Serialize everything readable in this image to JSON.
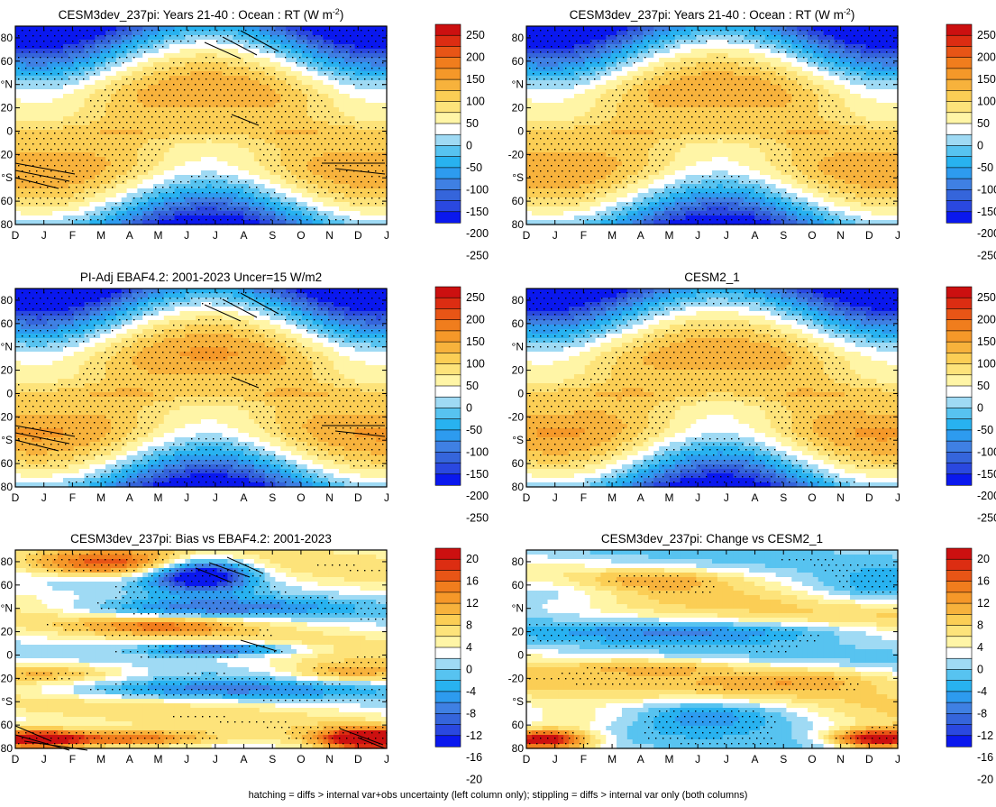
{
  "palette": {
    "rt": [
      "#0a18ee",
      "#2a48e0",
      "#3565db",
      "#3f80e3",
      "#2d9bef",
      "#28b2f0",
      "#57c3f0",
      "#9fdaf4",
      "#ffffff",
      "#fff5a6",
      "#fde37a",
      "#fbce55",
      "#f7b23c",
      "#f59829",
      "#f07d1d",
      "#e85516",
      "#dc2d12",
      "#cc1010"
    ],
    "diff": [
      "#0a18ee",
      "#2a48e0",
      "#3565db",
      "#3f80e3",
      "#2d9bef",
      "#28b2f0",
      "#57c3f0",
      "#9fdaf4",
      "#ffffff",
      "#fff5a6",
      "#fde37a",
      "#fbce55",
      "#f7b23c",
      "#f59829",
      "#f07d1d",
      "#e85516",
      "#dc2d12",
      "#cc1010"
    ]
  },
  "footnote": "hatching = diffs > internal var+obs uncertainty (left column only); stippling = diffs > internal var only (both columns)",
  "chart_data": [
    {
      "type": "heatmap",
      "panel_kind": "rt",
      "title_parts": [
        "CESM3dev_237pi: Years 21-40 : Ocean : RT (W m",
        "-2",
        ")"
      ],
      "x_ticklabels": [
        "D",
        "J",
        "F",
        "M",
        "A",
        "M",
        "J",
        "J",
        "A",
        "S",
        "O",
        "N",
        "D",
        "J"
      ],
      "y_ticks": [
        80,
        60,
        "°N",
        20,
        0,
        -20,
        "°S",
        -60,
        -80
      ],
      "y_ticklabels": [
        "80",
        "60",
        "°N",
        "20",
        "0",
        "-20",
        "°S",
        "60",
        "80"
      ],
      "ylim": [
        -80,
        90
      ],
      "colorbar_labels": [
        "250",
        "200",
        "150",
        "100",
        "50",
        "0",
        "-50",
        "-100",
        "-150",
        "-200",
        "-250"
      ],
      "stippling": "dense",
      "hatching": true,
      "field": "rt_model"
    },
    {
      "type": "heatmap",
      "panel_kind": "rt",
      "title_parts": [
        "CESM3dev_237pi: Years 21-40 : Ocean : RT (W m",
        "-2",
        ")"
      ],
      "x_ticklabels": [
        "D",
        "J",
        "F",
        "M",
        "A",
        "M",
        "J",
        "J",
        "A",
        "S",
        "O",
        "N",
        "D",
        "J"
      ],
      "y_ticks": [
        80,
        60,
        "°N",
        20,
        0,
        -20,
        "°S",
        -60,
        -80
      ],
      "y_ticklabels": [
        "80",
        "60",
        "°N",
        "20",
        "0",
        "-20",
        "°S",
        "60",
        "80"
      ],
      "ylim": [
        -80,
        90
      ],
      "colorbar_labels": [
        "250",
        "200",
        "150",
        "100",
        "50",
        "0",
        "-50",
        "-100",
        "-150",
        "-200",
        "-250"
      ],
      "stippling": "dense",
      "hatching": false,
      "field": "rt_model"
    },
    {
      "type": "heatmap",
      "panel_kind": "rt",
      "title_parts": [
        "PI-Adj EBAF4.2: 2001-2023 Uncer=15 W/m2",
        "",
        ""
      ],
      "x_ticklabels": [
        "D",
        "J",
        "F",
        "M",
        "A",
        "M",
        "J",
        "J",
        "A",
        "S",
        "O",
        "N",
        "D",
        "J"
      ],
      "y_ticks": [
        80,
        60,
        "°N",
        20,
        0,
        -20,
        "°S",
        -60,
        -80
      ],
      "y_ticklabels": [
        "80",
        "60",
        "°N",
        "20",
        "0",
        "-20",
        "°S",
        "60",
        "80"
      ],
      "ylim": [
        -80,
        90
      ],
      "colorbar_labels": [
        "250",
        "200",
        "150",
        "100",
        "50",
        "0",
        "-50",
        "-100",
        "-150",
        "-200",
        "-250"
      ],
      "stippling": "dense",
      "hatching": true,
      "field": "rt_obs"
    },
    {
      "type": "heatmap",
      "panel_kind": "rt",
      "title_parts": [
        "CESM2_1",
        "",
        ""
      ],
      "x_ticklabels": [
        "D",
        "J",
        "F",
        "M",
        "A",
        "M",
        "J",
        "J",
        "A",
        "S",
        "O",
        "N",
        "D",
        "J"
      ],
      "y_ticks": [
        80,
        60,
        "°N",
        20,
        0,
        -20,
        "°S",
        -60,
        -80
      ],
      "y_ticklabels": [
        "80",
        "60",
        "°N",
        "20",
        "0",
        "-20",
        "°S",
        "60",
        "80"
      ],
      "ylim": [
        -80,
        90
      ],
      "colorbar_labels": [
        "250",
        "200",
        "150",
        "100",
        "50",
        "0",
        "-50",
        "-100",
        "-150",
        "-200",
        "-250"
      ],
      "stippling": "dense",
      "hatching": false,
      "field": "rt_cesm2"
    },
    {
      "type": "heatmap",
      "panel_kind": "diff",
      "title_parts": [
        "CESM3dev_237pi: Bias vs EBAF4.2: 2001-2023",
        "",
        ""
      ],
      "x_ticklabels": [
        "D",
        "J",
        "F",
        "M",
        "A",
        "M",
        "J",
        "J",
        "A",
        "S",
        "O",
        "N",
        "D",
        "J"
      ],
      "y_ticks": [
        80,
        60,
        "°N",
        20,
        0,
        -20,
        "°S",
        -60,
        -80
      ],
      "y_ticklabels": [
        "80",
        "60",
        "°N",
        "20",
        "0",
        "-20",
        "°S",
        "60",
        "80"
      ],
      "ylim": [
        -80,
        90
      ],
      "colorbar_labels": [
        "20",
        "16",
        "12",
        "8",
        "4",
        "0",
        "-4",
        "-8",
        "-12",
        "-16",
        "-20"
      ],
      "stippling": "medium",
      "hatching": true,
      "field": "bias"
    },
    {
      "type": "heatmap",
      "panel_kind": "diff",
      "title_parts": [
        "CESM3dev_237pi: Change vs CESM2_1",
        "",
        ""
      ],
      "x_ticklabels": [
        "D",
        "J",
        "F",
        "M",
        "A",
        "M",
        "J",
        "J",
        "A",
        "S",
        "O",
        "N",
        "D",
        "J"
      ],
      "y_ticks": [
        80,
        60,
        "°N",
        20,
        0,
        -20,
        "°S",
        -60,
        -80
      ],
      "y_ticklabels": [
        "80",
        "60",
        "°N",
        "20",
        "0",
        "-20",
        "°S",
        "60",
        "80"
      ],
      "ylim": [
        -80,
        90
      ],
      "colorbar_labels": [
        "20",
        "16",
        "12",
        "8",
        "4",
        "0",
        "-4",
        "-8",
        "-12",
        "-16",
        "-20"
      ],
      "stippling": "sparse",
      "hatching": false,
      "field": "change"
    }
  ]
}
